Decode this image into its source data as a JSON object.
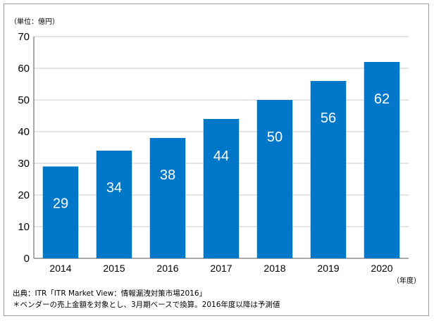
{
  "chart_data": {
    "type": "bar",
    "title": "",
    "ylabel_unit": "（単位：億円）",
    "xlabel_unit": "（年度）",
    "categories": [
      "2014",
      "2015",
      "2016",
      "2017",
      "2018",
      "2019",
      "2020"
    ],
    "values": [
      29,
      34,
      38,
      44,
      50,
      56,
      62
    ],
    "data_labels": [
      "29",
      "34",
      "38",
      "44",
      "50",
      "56",
      "62"
    ],
    "ylim": [
      0,
      70
    ],
    "yticks": [
      0,
      10,
      20,
      30,
      40,
      50,
      60,
      70
    ],
    "grid": true,
    "bar_color": "#0077c8",
    "grid_color": "#c8c8c8",
    "label_color": "#ffffff"
  },
  "notes": {
    "source": "出典：ITR「ITR Market View：情報漏洩対策市場2016」",
    "footnote": "＊ベンダーの売上金額を対象とし、3月期ベースで換算。2016年度以降は予測値"
  }
}
